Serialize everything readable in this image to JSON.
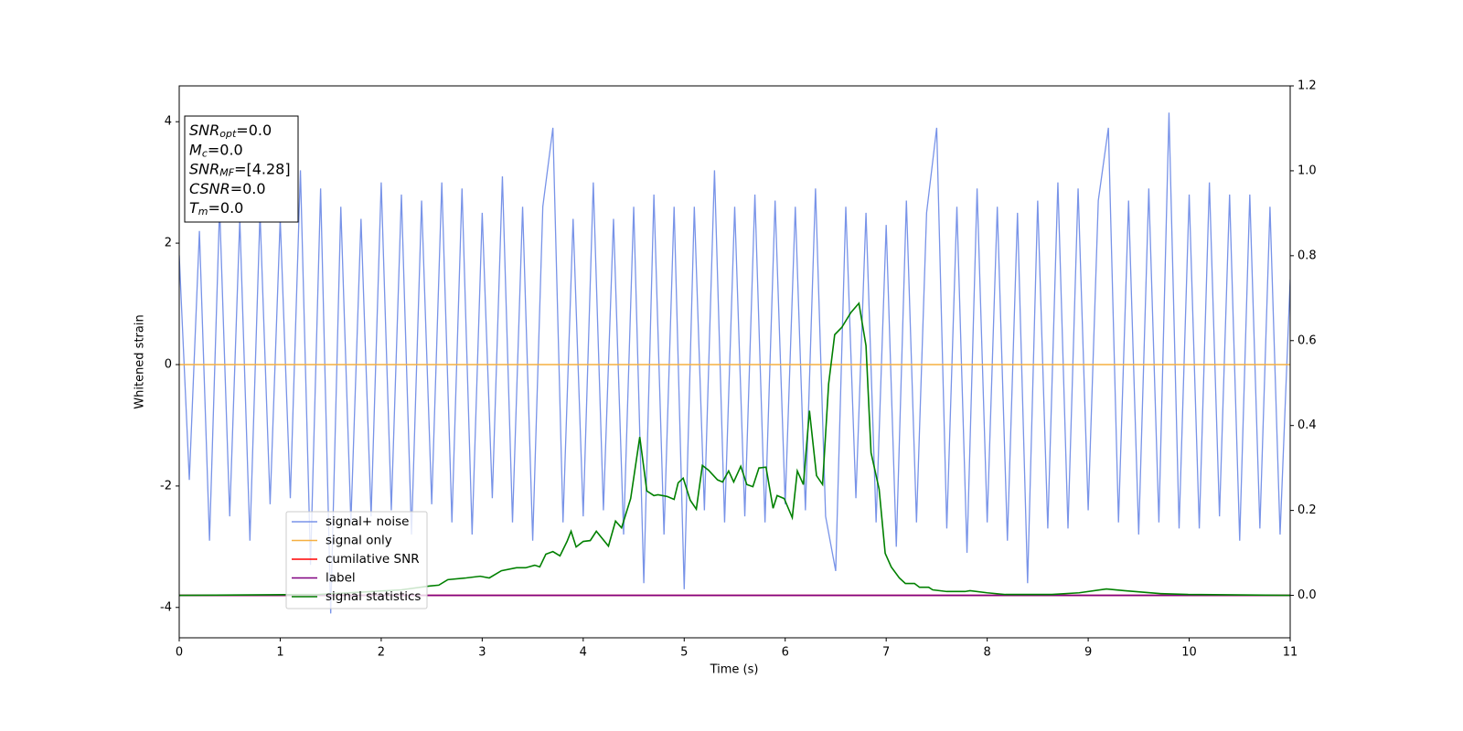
{
  "chart_data": {
    "type": "line",
    "xlabel": "Time (s)",
    "ylabel": "Whitened strain",
    "xlim": [
      0,
      11
    ],
    "ylim": [
      -4.5,
      4.59
    ],
    "y2lim": [
      -0.1,
      1.2
    ],
    "xticks": [
      0,
      1,
      2,
      3,
      4,
      5,
      6,
      7,
      8,
      9,
      10,
      11
    ],
    "yticks": [
      -4,
      -2,
      0,
      2,
      4
    ],
    "y2ticks": [
      {
        "value": 0,
        "label": "0.0"
      },
      0.2,
      0.4,
      0.6,
      0.8,
      {
        "value": 1,
        "label": "1.0"
      },
      1.2
    ],
    "legend": "lower left",
    "annotations": [
      {
        "main": "SNR",
        "sub": "opt",
        "rest": "=0.0"
      },
      {
        "main": "M",
        "sub": "c",
        "rest": "=0.0"
      },
      {
        "main": "SNR",
        "sub": "MF",
        "rest": "=[4.28]"
      },
      {
        "main": "CSNR",
        "rest": "=0.0"
      },
      {
        "main": "T",
        "sub": "m",
        "rest": "=0.0"
      }
    ],
    "series": [
      {
        "name": "signal+ noise",
        "color": "#7893e8",
        "x": [
          0,
          0.1,
          0.2,
          0.3,
          0.4,
          0.5,
          0.6,
          0.7,
          0.8,
          0.9,
          1,
          1.1,
          1.2,
          1.3,
          1.4,
          1.5,
          1.6,
          1.7,
          1.8,
          1.9,
          2,
          2.1,
          2.2,
          2.3,
          2.4,
          2.5,
          2.6,
          2.7,
          2.8,
          2.9,
          3,
          3.1,
          3.2,
          3.3,
          3.4,
          3.5,
          3.6,
          3.7,
          3.8,
          3.9,
          4,
          4.1,
          4.2,
          4.3,
          4.4,
          4.5,
          4.6,
          4.7,
          4.8,
          4.9,
          5,
          5.1,
          5.2,
          5.3,
          5.4,
          5.5,
          5.6,
          5.7,
          5.8,
          5.9,
          6,
          6.1,
          6.2,
          6.3,
          6.4,
          6.5,
          6.6,
          6.7,
          6.8,
          6.9,
          7,
          7.1,
          7.2,
          7.3,
          7.4,
          7.5,
          7.6,
          7.7,
          7.8,
          7.9,
          8,
          8.1,
          8.2,
          8.3,
          8.4,
          8.5,
          8.6,
          8.7,
          8.8,
          8.9,
          9,
          9.1,
          9.2,
          9.3,
          9.4,
          9.5,
          9.6,
          9.7,
          9.8,
          9.9,
          10,
          10.1,
          10.2,
          10.3,
          10.4,
          10.5,
          10.6,
          10.7,
          10.8,
          10.9,
          11
        ],
        "values": [
          1.8,
          -1.9,
          2.2,
          -2.9,
          2.6,
          -2.5,
          2.4,
          -2.9,
          2.5,
          -2.3,
          2.4,
          -2.2,
          3.2,
          -3.3,
          2.9,
          -4.1,
          2.6,
          -2.6,
          2.4,
          -2.5,
          3.0,
          -2.4,
          2.8,
          -2.8,
          2.7,
          -2.3,
          3.0,
          -2.6,
          2.9,
          -2.8,
          2.5,
          -2.2,
          3.1,
          -2.6,
          2.6,
          -2.9,
          2.6,
          3.9,
          -2.6,
          2.4,
          -2.5,
          3.0,
          -2.4,
          2.4,
          -2.8,
          2.6,
          -3.6,
          2.8,
          -2.8,
          2.6,
          -3.7,
          2.6,
          -2.4,
          3.2,
          -2.6,
          2.6,
          -2.5,
          2.8,
          -2.6,
          2.7,
          -2.3,
          2.6,
          -2.4,
          2.9,
          -2.5,
          -3.4,
          2.6,
          -2.2,
          2.5,
          -2.6,
          2.3,
          -3.0,
          2.7,
          -2.6,
          2.5,
          3.9,
          -2.7,
          2.6,
          -3.1,
          2.9,
          -2.6,
          2.6,
          -2.9,
          2.5,
          -3.6,
          2.7,
          -2.7,
          3.0,
          -2.7,
          2.9,
          -2.4,
          2.7,
          3.9,
          -2.6,
          2.7,
          -2.8,
          2.9,
          -2.6,
          4.15,
          -2.7,
          2.8,
          -2.7,
          3.0,
          -2.5,
          2.8,
          -2.9,
          2.8,
          -2.7,
          2.6,
          -2.8,
          1.4
        ]
      },
      {
        "name": "signal only",
        "color": "#f5b041",
        "x": [
          0,
          11
        ],
        "values": [
          0,
          0
        ]
      },
      {
        "name": "cumilative SNR",
        "color": "#ff0000",
        "axis": "y2",
        "x": [
          0,
          11
        ],
        "values": [
          0,
          0
        ]
      },
      {
        "name": "label",
        "color": "#800080",
        "axis": "y2",
        "x": [
          0,
          11
        ],
        "values": [
          0,
          0
        ]
      },
      {
        "name": "signal statistics",
        "color": "#008000",
        "axis": "y2",
        "x": [
          0,
          1.39,
          2.2,
          2.48,
          2.57,
          2.66,
          2.84,
          2.98,
          3.07,
          3.19,
          3.34,
          3.43,
          3.52,
          3.57,
          3.63,
          3.7,
          3.77,
          3.84,
          3.88,
          3.93,
          4.0,
          4.07,
          4.13,
          4.25,
          4.32,
          4.38,
          4.47,
          4.56,
          4.63,
          4.7,
          4.74,
          4.83,
          4.9,
          4.94,
          4.99,
          5.06,
          5.12,
          5.18,
          5.24,
          5.33,
          5.38,
          5.44,
          5.49,
          5.56,
          5.62,
          5.68,
          5.74,
          5.81,
          5.88,
          5.92,
          5.99,
          6.07,
          6.12,
          6.18,
          6.24,
          6.31,
          6.37,
          6.43,
          6.49,
          6.56,
          6.65,
          6.73,
          6.8,
          6.85,
          6.93,
          6.99,
          7.05,
          7.13,
          7.19,
          7.28,
          7.33,
          7.42,
          7.46,
          7.6,
          7.78,
          7.83,
          8.0,
          8.18,
          8.64,
          8.91,
          9.18,
          9.36,
          9.72,
          9.99,
          11
        ],
        "values": [
          0,
          0.002,
          0.013,
          0.022,
          0.024,
          0.037,
          0.041,
          0.045,
          0.041,
          0.058,
          0.065,
          0.065,
          0.071,
          0.067,
          0.097,
          0.103,
          0.093,
          0.127,
          0.151,
          0.114,
          0.127,
          0.129,
          0.151,
          0.116,
          0.175,
          0.159,
          0.228,
          0.373,
          0.246,
          0.235,
          0.237,
          0.233,
          0.226,
          0.265,
          0.276,
          0.224,
          0.203,
          0.306,
          0.295,
          0.272,
          0.267,
          0.293,
          0.267,
          0.304,
          0.261,
          0.256,
          0.3,
          0.302,
          0.205,
          0.235,
          0.228,
          0.183,
          0.293,
          0.261,
          0.435,
          0.282,
          0.261,
          0.498,
          0.614,
          0.631,
          0.666,
          0.688,
          0.588,
          0.336,
          0.25,
          0.099,
          0.067,
          0.041,
          0.028,
          0.028,
          0.019,
          0.019,
          0.013,
          0.009,
          0.009,
          0.011,
          0.006,
          0.002,
          0.002,
          0.006,
          0.015,
          0.011,
          0.004,
          0.002,
          0
        ]
      }
    ]
  }
}
